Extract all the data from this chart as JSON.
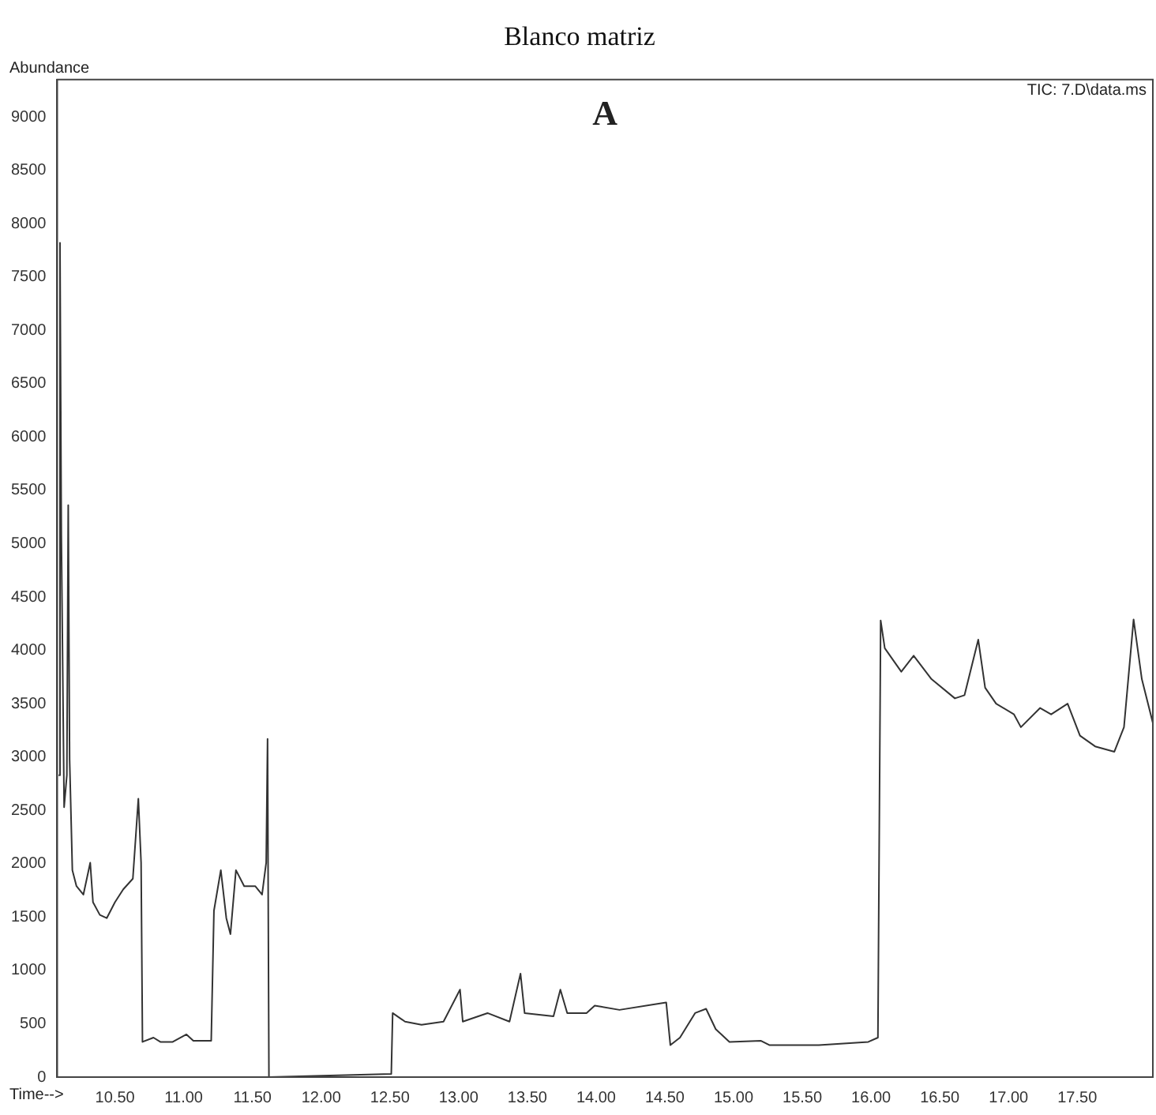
{
  "chart_data": {
    "type": "line",
    "title": "Blanco matriz",
    "xlabel": "Time-->",
    "ylabel": "Abundance",
    "annotations": [
      "A",
      "TIC: 7.D\\data.ms"
    ],
    "series": [
      {
        "color": "#333333",
        "x": [
          10.09,
          10.1,
          10.11,
          10.13,
          10.15,
          10.16,
          10.17,
          10.19,
          10.22,
          10.27,
          10.32,
          10.34,
          10.39,
          10.44,
          10.5,
          10.56,
          10.63,
          10.67,
          10.69,
          10.7,
          10.78,
          10.83,
          10.92,
          11.02,
          11.07,
          11.2,
          11.22,
          11.27,
          11.31,
          11.34,
          11.38,
          11.44,
          11.52,
          11.57,
          11.6,
          11.61,
          11.62,
          12.51,
          12.52,
          12.61,
          12.73,
          12.89,
          13.01,
          13.03,
          13.21,
          13.37,
          13.45,
          13.48,
          13.69,
          13.74,
          13.79,
          13.93,
          13.99,
          14.17,
          14.51,
          14.54,
          14.61,
          14.72,
          14.8,
          14.87,
          14.97,
          15.2,
          15.26,
          15.62,
          15.98,
          16.05,
          16.07,
          16.1,
          16.22,
          16.31,
          16.44,
          16.61,
          16.68,
          16.78,
          16.83,
          16.91,
          17.04,
          17.09,
          17.23,
          17.31,
          17.43,
          17.52,
          17.63,
          17.77,
          17.84,
          17.91,
          17.97,
          18.05
        ],
        "values": [
          2830,
          7820,
          5070,
          2530,
          2830,
          5360,
          2980,
          1940,
          1790,
          1710,
          2010,
          1640,
          1520,
          1490,
          1640,
          1760,
          1860,
          2610,
          2010,
          330,
          370,
          330,
          330,
          400,
          340,
          340,
          1560,
          1940,
          1490,
          1340,
          1940,
          1790,
          1790,
          1710,
          2010,
          3170,
          0,
          30,
          600,
          520,
          490,
          520,
          820,
          520,
          600,
          520,
          970,
          600,
          570,
          820,
          600,
          600,
          670,
          630,
          700,
          300,
          370,
          600,
          640,
          450,
          330,
          340,
          300,
          300,
          330,
          370,
          4280,
          4020,
          3800,
          3950,
          3730,
          3550,
          3580,
          4100,
          3650,
          3500,
          3400,
          3280,
          3460,
          3400,
          3500,
          3200,
          3100,
          3050,
          3280,
          4290,
          3730,
          3320
        ]
      }
    ],
    "xlim": [
      10.08,
      18.05
    ],
    "xticks": [
      {
        "value": 10.5,
        "label": "10.50"
      },
      {
        "value": 11,
        "label": "11.00"
      },
      {
        "value": 11.5,
        "label": "11.50"
      },
      {
        "value": 12,
        "label": "12.00"
      },
      {
        "value": 12.5,
        "label": "12.50"
      },
      {
        "value": 13,
        "label": "13.00"
      },
      {
        "value": 13.5,
        "label": "13.50"
      },
      {
        "value": 14,
        "label": "14.00"
      },
      {
        "value": 14.5,
        "label": "14.50"
      },
      {
        "value": 15,
        "label": "15.00"
      },
      {
        "value": 15.5,
        "label": "15.50"
      },
      {
        "value": 16,
        "label": "16.00"
      },
      {
        "value": 16.5,
        "label": "16.50"
      },
      {
        "value": 17,
        "label": "17.00"
      },
      {
        "value": 17.5,
        "label": "17.50"
      }
    ],
    "ylim": [
      0,
      9350
    ],
    "yticks": [
      0,
      500,
      1000,
      1500,
      2000,
      2500,
      3000,
      3500,
      4000,
      4500,
      5000,
      5500,
      6000,
      6500,
      7000,
      7500,
      8000,
      8500,
      9000
    ],
    "grid": false,
    "legend": false,
    "marker": "none",
    "line_style": "solid"
  }
}
